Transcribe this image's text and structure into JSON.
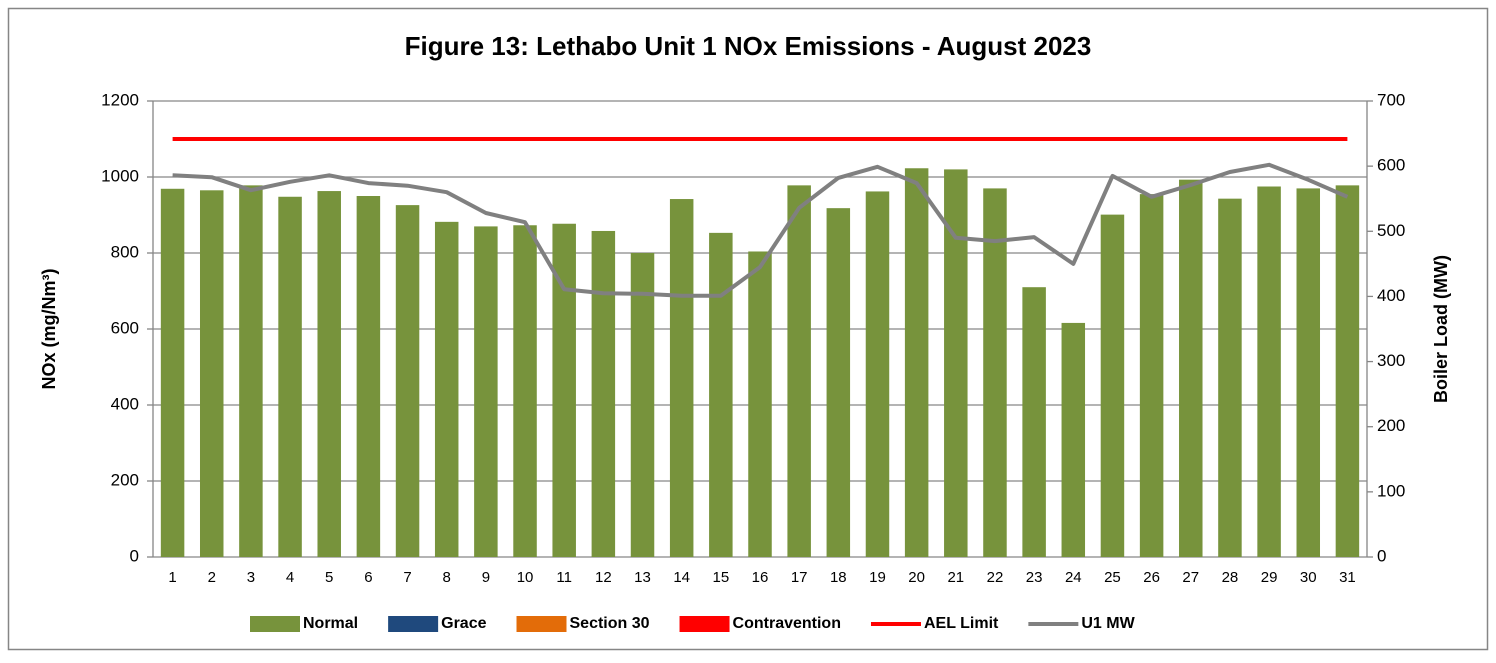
{
  "chart_data": {
    "type": "bar",
    "title": "Figure 13: Lethabo Unit 1 NOx Emissions -  August 2023",
    "y_label": "NOx (mg/Nm³)",
    "y2_label": "Boiler Load (MW)",
    "categories": [
      "1",
      "2",
      "3",
      "4",
      "5",
      "6",
      "7",
      "8",
      "9",
      "10",
      "11",
      "12",
      "13",
      "14",
      "15",
      "16",
      "17",
      "18",
      "19",
      "20",
      "21",
      "22",
      "23",
      "24",
      "25",
      "26",
      "27",
      "28",
      "29",
      "30",
      "31"
    ],
    "ylim": [
      0,
      1200
    ],
    "yticks": [
      0,
      200,
      400,
      600,
      800,
      1000,
      1200
    ],
    "y2lim": [
      0,
      700
    ],
    "y2ticks": [
      0,
      100,
      200,
      300,
      400,
      500,
      600,
      700
    ],
    "grid": true,
    "legend": "bottom",
    "series": [
      {
        "name": "Normal",
        "type": "bar",
        "color": "#77933c",
        "values": [
          969,
          965,
          978,
          948,
          963,
          950,
          926,
          882,
          870,
          873,
          877,
          858,
          800,
          942,
          853,
          804,
          978,
          918,
          962,
          1023,
          1020,
          970,
          710,
          616,
          901,
          955,
          993,
          943,
          975,
          970,
          978
        ]
      },
      {
        "name": "Grace",
        "type": "bar",
        "color": "#1f497d",
        "values": [
          null,
          null,
          null,
          null,
          null,
          null,
          null,
          null,
          null,
          null,
          null,
          null,
          null,
          null,
          null,
          null,
          null,
          null,
          null,
          null,
          null,
          null,
          null,
          null,
          null,
          null,
          null,
          null,
          null,
          null,
          null
        ]
      },
      {
        "name": "Section 30",
        "type": "bar",
        "color": "#e36c09",
        "values": [
          null,
          null,
          null,
          null,
          null,
          null,
          null,
          null,
          null,
          null,
          null,
          null,
          null,
          null,
          null,
          null,
          null,
          null,
          null,
          null,
          null,
          null,
          null,
          null,
          null,
          null,
          null,
          null,
          null,
          null,
          null
        ]
      },
      {
        "name": "Contravention",
        "type": "bar",
        "color": "#ff0000",
        "values": [
          null,
          null,
          null,
          null,
          null,
          null,
          null,
          null,
          null,
          null,
          null,
          null,
          null,
          null,
          null,
          null,
          null,
          null,
          null,
          null,
          null,
          null,
          null,
          null,
          null,
          null,
          null,
          null,
          null,
          null,
          null
        ]
      },
      {
        "name": "AEL Limit",
        "type": "line",
        "color": "#ff0000",
        "values": [
          1100,
          1100,
          1100,
          1100,
          1100,
          1100,
          1100,
          1100,
          1100,
          1100,
          1100,
          1100,
          1100,
          1100,
          1100,
          1100,
          1100,
          1100,
          1100,
          1100,
          1100,
          1100,
          1100,
          1100,
          1100,
          1100,
          1100,
          1100,
          1100,
          1100,
          1100
        ]
      },
      {
        "name": "U1 MW",
        "type": "line",
        "axis": "y2",
        "color": "#808080",
        "values": [
          586,
          583,
          563,
          576,
          586,
          574,
          570,
          560,
          528,
          514,
          411,
          405,
          404,
          401,
          401,
          445,
          536,
          582,
          599,
          574,
          490,
          485,
          491,
          450,
          585,
          553,
          571,
          591,
          602,
          579,
          553
        ]
      }
    ]
  }
}
